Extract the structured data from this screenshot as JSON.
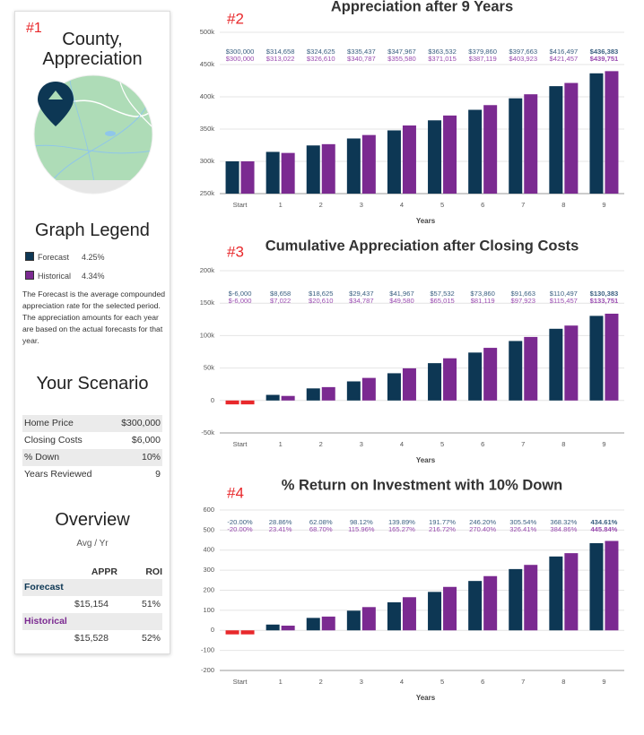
{
  "panel": {
    "tag": "#1",
    "title": "County, Appreciation",
    "legend_title": "Graph Legend",
    "legend": [
      {
        "name": "Forecast",
        "rate": "4.25%",
        "color": "#0d3754"
      },
      {
        "name": "Historical",
        "rate": "4.34%",
        "color": "#7b2a91"
      }
    ],
    "note": "The Forecast is the average compounded appreciation rate for the selected period. The appreciation amounts for each year are based on the actual forecasts for that year.",
    "scenario_title": "Your Scenario",
    "scenario": [
      [
        "Home Price",
        "$300,000"
      ],
      [
        "Closing Costs",
        "$6,000"
      ],
      [
        "% Down",
        "10%"
      ],
      [
        "Years Reviewed",
        "9"
      ]
    ],
    "overview_title": "Overview",
    "overview_subtitle": "Avg / Yr",
    "overview_columns": [
      "APPR",
      "ROI"
    ],
    "overview_rows": [
      {
        "name": "Forecast",
        "appr": "$15,154",
        "roi": "51%"
      },
      {
        "name": "Historical",
        "appr": "$15,528",
        "roi": "52%"
      }
    ]
  },
  "chart_data": [
    {
      "type": "bar",
      "annotation": "#2",
      "title": "Appreciation after 9 Years",
      "x_label": "Years",
      "categories": [
        "Start",
        "1",
        "2",
        "3",
        "4",
        "5",
        "6",
        "7",
        "8",
        "9"
      ],
      "series": [
        {
          "color": "#0d3754",
          "values": [
            300000,
            314658,
            324625,
            335437,
            347967,
            363532,
            379860,
            397663,
            416497,
            436383
          ],
          "value_labels": [
            "$300,000",
            "$314,658",
            "$324,625",
            "$335,437",
            "$347,967",
            "$363,532",
            "$379,860",
            "$397,663",
            "$416,497",
            "$436,383"
          ]
        },
        {
          "color": "#7b2a91",
          "values": [
            300000,
            313022,
            326610,
            340787,
            355580,
            371015,
            387119,
            403923,
            421457,
            439751
          ],
          "value_labels": [
            "$300,000",
            "$313,022",
            "$326,610",
            "$340,787",
            "$355,580",
            "$371,015",
            "$387,119",
            "$403,923",
            "$421,457",
            "$439,751"
          ]
        }
      ],
      "negative_color": "#e8282b",
      "ylim": [
        250000,
        500000
      ],
      "yticks": [
        {
          "value": 250000,
          "label": "250k"
        },
        {
          "value": 300000,
          "label": "300k"
        },
        {
          "value": 350000,
          "label": "350k"
        },
        {
          "value": 400000,
          "label": "400k"
        },
        {
          "value": 450000,
          "label": "450k"
        },
        {
          "value": 500000,
          "label": "500k"
        }
      ],
      "grid": true
    },
    {
      "type": "bar",
      "annotation": "#3",
      "title": "Cumulative Appreciation after Closing Costs",
      "x_label": "Years",
      "categories": [
        "Start",
        "1",
        "2",
        "3",
        "4",
        "5",
        "6",
        "7",
        "8",
        "9"
      ],
      "series": [
        {
          "color": "#0d3754",
          "values": [
            -6000,
            8658,
            18625,
            29437,
            41967,
            57532,
            73860,
            91663,
            110497,
            130383
          ],
          "value_labels": [
            "$-6,000",
            "$8,658",
            "$18,625",
            "$29,437",
            "$41,967",
            "$57,532",
            "$73,860",
            "$91,663",
            "$110,497",
            "$130,383"
          ]
        },
        {
          "color": "#7b2a91",
          "values": [
            -6000,
            7022,
            20610,
            34787,
            49580,
            65015,
            81119,
            97923,
            115457,
            133751
          ],
          "value_labels": [
            "$-6,000",
            "$7,022",
            "$20,610",
            "$34,787",
            "$49,580",
            "$65,015",
            "$81,119",
            "$97,923",
            "$115,457",
            "$133,751"
          ]
        }
      ],
      "negative_color": "#e8282b",
      "ylim": [
        -50000,
        200000
      ],
      "yticks": [
        {
          "value": -50000,
          "label": "-50k"
        },
        0,
        {
          "value": 50000,
          "label": "50k"
        },
        {
          "value": 100000,
          "label": "100k"
        },
        {
          "value": 150000,
          "label": "150k"
        },
        {
          "value": 200000,
          "label": "200k"
        }
      ],
      "grid": true
    },
    {
      "type": "bar",
      "annotation": "#4",
      "title": "% Return on Investment with 10% Down",
      "x_label": "Years",
      "categories": [
        "Start",
        "1",
        "2",
        "3",
        "4",
        "5",
        "6",
        "7",
        "8",
        "9"
      ],
      "series": [
        {
          "color": "#0d3754",
          "values": [
            -20,
            28.86,
            62.08,
            98.12,
            139.89,
            191.77,
            246.2,
            305.54,
            368.32,
            434.61
          ],
          "value_labels": [
            "-20.00%",
            "28.86%",
            "62.08%",
            "98.12%",
            "139.89%",
            "191.77%",
            "246.20%",
            "305.54%",
            "368.32%",
            "434.61%"
          ]
        },
        {
          "color": "#7b2a91",
          "values": [
            -20,
            23.41,
            68.7,
            115.96,
            165.27,
            216.72,
            270.4,
            326.41,
            384.86,
            445.84
          ],
          "value_labels": [
            "-20.00%",
            "23.41%",
            "68.70%",
            "115.96%",
            "165.27%",
            "216.72%",
            "270.40%",
            "326.41%",
            "384.86%",
            "445.84%"
          ]
        }
      ],
      "negative_color": "#e8282b",
      "ylim": [
        -200,
        600
      ],
      "yticks": [
        -200,
        -100,
        0,
        100,
        200,
        300,
        400,
        500,
        600
      ],
      "grid": true
    }
  ]
}
